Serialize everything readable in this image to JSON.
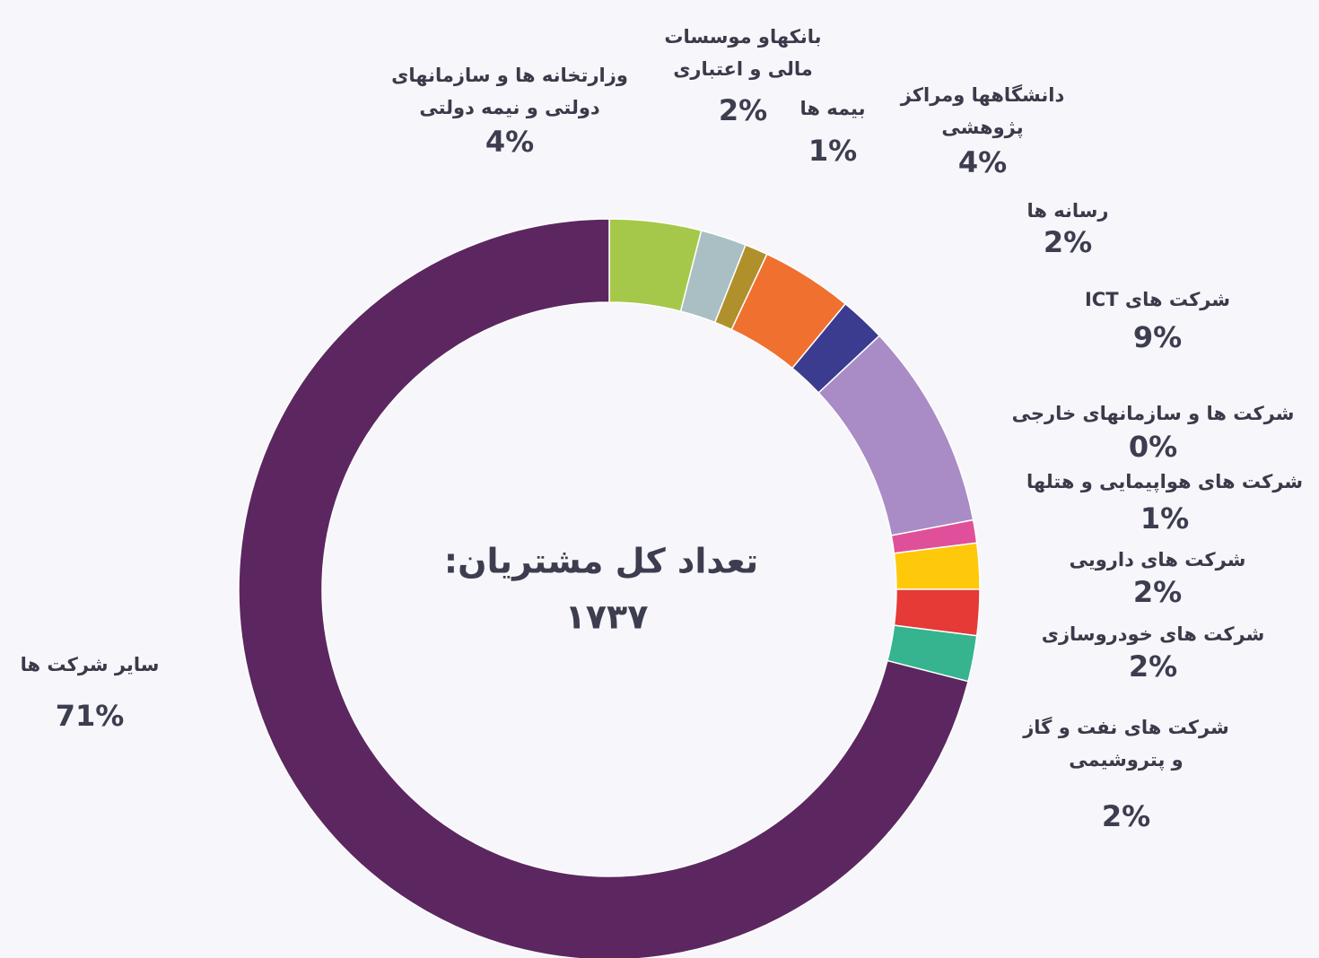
{
  "chart_data": {
    "type": "donut",
    "center_text": [
      "تعداد کل مشتریان:",
      "۱۷۳۷"
    ],
    "categories": [
      [
        "وزارتخانه ها و سازمانهای",
        "دولتی و نیمه دولتی"
      ],
      [
        "بانکهاو موسسات",
        "مالی و اعتباری"
      ],
      [
        "بیمه ها"
      ],
      [
        "دانشگاهها ومراکز",
        "پژوهشی"
      ],
      [
        "رسانه ها"
      ],
      [
        "شرکت های ICT"
      ],
      [
        "شرکت ها و سازمانهای خارجی"
      ],
      [
        "شرکت های هواپیمایی و هتلها"
      ],
      [
        "شرکت های دارویی"
      ],
      [
        "شرکت های خودروسازی"
      ],
      [
        "شرکت های نفت و گاز",
        "و پتروشیمی"
      ],
      [
        "سایر شرکت ها"
      ]
    ],
    "values": [
      4,
      2,
      1,
      4,
      2,
      9,
      0,
      1,
      2,
      2,
      2,
      71
    ],
    "value_labels": [
      "4%",
      "2%",
      "1%",
      "4%",
      "2%",
      "9%",
      "0%",
      "1%",
      "2%",
      "2%",
      "2%",
      "71%"
    ],
    "colors": [
      "#a5c84a",
      "#a9bfc3",
      "#b0902a",
      "#f07030",
      "#3b3b8f",
      "#a98bc6",
      "#c0c0c0",
      "#e0509a",
      "#fdc90a",
      "#e53a36",
      "#35b48f",
      "#5c2760"
    ]
  }
}
